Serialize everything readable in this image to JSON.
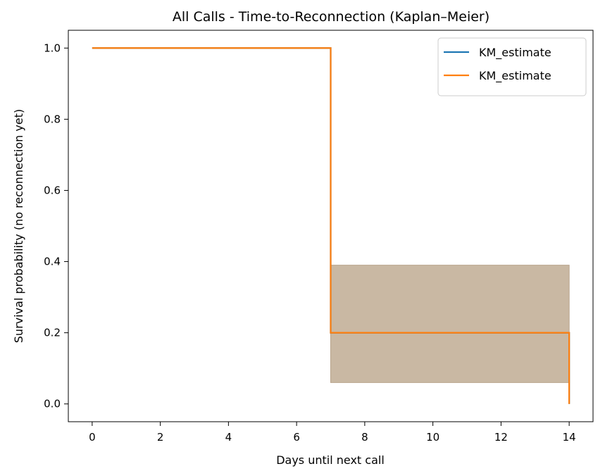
{
  "chart_data": {
    "type": "line",
    "title": "All Calls - Time-to-Reconnection (Kaplan–Meier)",
    "xlabel": "Days until next call",
    "ylabel": "Survival probability (no reconnection yet)",
    "xlim": [
      -0.7,
      14.7
    ],
    "ylim": [
      -0.05,
      1.05
    ],
    "xticks": [
      0,
      2,
      4,
      6,
      8,
      10,
      12,
      14
    ],
    "xtick_labels": [
      "0",
      "2",
      "4",
      "6",
      "8",
      "10",
      "12",
      "14"
    ],
    "yticks": [
      0.0,
      0.2,
      0.4,
      0.6,
      0.8,
      1.0
    ],
    "ytick_labels": [
      "0.0",
      "0.2",
      "0.4",
      "0.6",
      "0.8",
      "1.0"
    ],
    "grid": false,
    "legend_position": "top-right",
    "series": [
      {
        "name": "KM_estimate",
        "color": "#1f77b4",
        "step": true,
        "x": [
          0,
          7,
          14
        ],
        "y": [
          1.0,
          0.2,
          0.0
        ]
      },
      {
        "name": "KM_estimate",
        "color": "#ff7f0e",
        "step": true,
        "x": [
          0,
          7,
          14
        ],
        "y": [
          1.0,
          0.2,
          0.0
        ]
      }
    ],
    "confidence_band": {
      "color": "#c9b8a3",
      "x": [
        7,
        14
      ],
      "lower": [
        0.06,
        0.06
      ],
      "upper": [
        0.39,
        0.39
      ]
    }
  }
}
